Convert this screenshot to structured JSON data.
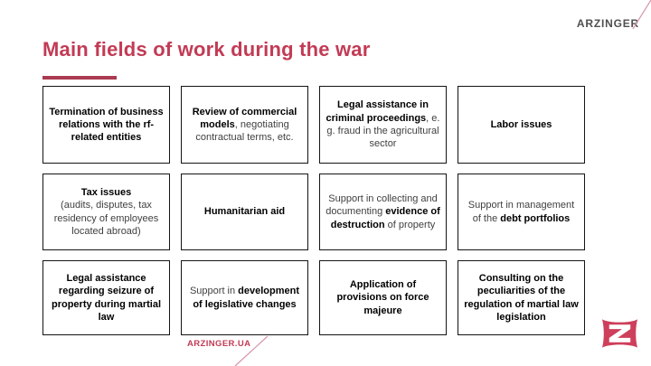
{
  "slide": {
    "title": "Main fields of work during the war",
    "brand": {
      "wordmark": "ARZINGER",
      "footer_link": "ARZINGER.UA",
      "logo_icon": "arzinger-z-mark"
    },
    "colors": {
      "brand_red": "#c23b55",
      "underline_red": "#aa3b51",
      "logo_red": "#ce3f5b",
      "pink_line": "#d795a9",
      "wordmark_gray": "#4f4f4f",
      "text_regular": "#3f3f3f",
      "text_bold": "#000000",
      "box_border": "#141414"
    },
    "grid": {
      "columns": 4,
      "rows": 3,
      "boxes": [
        {
          "segments": [
            {
              "t": "Termination of business relations with the rf-related entities",
              "b": true
            }
          ]
        },
        {
          "segments": [
            {
              "t": "Review of commercial models",
              "b": true
            },
            {
              "t": ", negotiating contractual terms, etc.",
              "b": false
            }
          ]
        },
        {
          "segments": [
            {
              "t": "Legal assistance in criminal proceedings",
              "b": true
            },
            {
              "t": ", e. g. fraud in the agricultural sector",
              "b": false
            }
          ]
        },
        {
          "segments": [
            {
              "t": "Labor issues",
              "b": true
            }
          ]
        },
        {
          "segments": [
            {
              "t": "Tax issues",
              "b": true
            },
            {
              "t": "\n(audits, disputes, tax residency of employees located abroad)",
              "b": false
            }
          ]
        },
        {
          "segments": [
            {
              "t": "Humanitarian aid",
              "b": true
            }
          ]
        },
        {
          "segments": [
            {
              "t": "Support in collecting and documenting ",
              "b": false
            },
            {
              "t": "evidence of destruction",
              "b": true
            },
            {
              "t": " of property",
              "b": false
            }
          ]
        },
        {
          "segments": [
            {
              "t": "Support in management of the ",
              "b": false
            },
            {
              "t": "debt portfolios",
              "b": true
            }
          ]
        },
        {
          "segments": [
            {
              "t": "Legal assistance regarding seizure of property during martial law",
              "b": true
            }
          ]
        },
        {
          "segments": [
            {
              "t": "Support in ",
              "b": false
            },
            {
              "t": "development of legislative changes",
              "b": true
            }
          ]
        },
        {
          "segments": [
            {
              "t": "Application of provisions on force majeure",
              "b": true
            }
          ]
        },
        {
          "segments": [
            {
              "t": "Consulting on the peculiarities of the regulation of martial law legislation",
              "b": true
            }
          ]
        }
      ]
    }
  }
}
